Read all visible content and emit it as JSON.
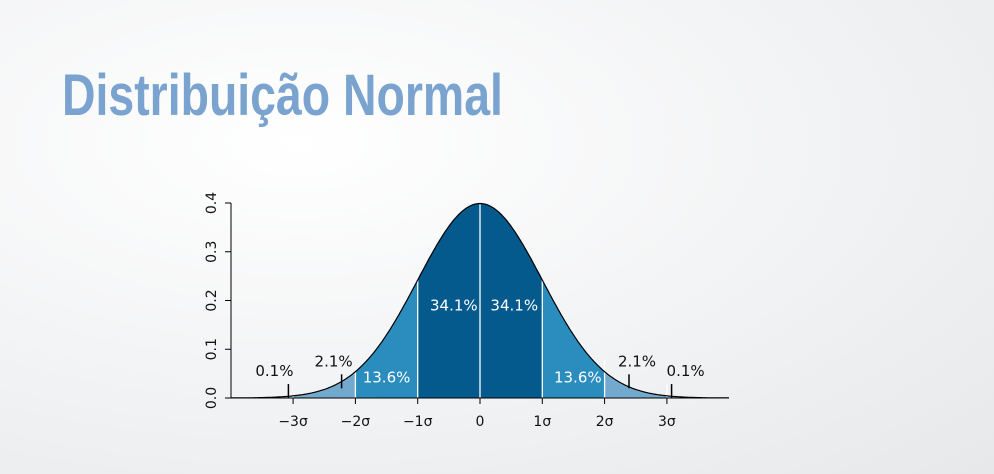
{
  "slide": {
    "title": "Distribuição Normal"
  },
  "colors": {
    "title": "#7ba3cf",
    "band_inner": "#045a8d",
    "band_middle": "#2b8cbe",
    "band_outer": "#74a9cf",
    "band_tail": "#bdd7e7",
    "curve": "#000000",
    "divider": "#ffffff"
  },
  "chart_data": {
    "type": "area",
    "title": "",
    "xlabel": "",
    "ylabel": "",
    "xlim": [
      -3.7,
      3.9
    ],
    "ylim": [
      0,
      0.4
    ],
    "x_ticks": [
      {
        "value": -3,
        "label": "−3σ"
      },
      {
        "value": -2,
        "label": "−2σ"
      },
      {
        "value": -1,
        "label": "−1σ"
      },
      {
        "value": 0,
        "label": "0"
      },
      {
        "value": 1,
        "label": "1σ"
      },
      {
        "value": 2,
        "label": "2σ"
      },
      {
        "value": 3,
        "label": "3σ"
      }
    ],
    "y_ticks": [
      {
        "value": 0.0,
        "label": "0.0"
      },
      {
        "value": 0.1,
        "label": "0.1"
      },
      {
        "value": 0.2,
        "label": "0.2"
      },
      {
        "value": 0.3,
        "label": "0.3"
      },
      {
        "value": 0.4,
        "label": "0.4"
      }
    ],
    "curve": "standard normal density, mean 0, sd 1",
    "bands": [
      {
        "from": -3.9,
        "to": -3,
        "percent": 0.1,
        "label": "0.1%",
        "color": "#bdd7e7",
        "label_x": -3.3,
        "label_y": 0.045,
        "label_outside": true
      },
      {
        "from": -3,
        "to": -2,
        "percent": 2.1,
        "label": "2.1%",
        "color": "#74a9cf",
        "label_x": -2.35,
        "label_y": 0.065,
        "label_outside": true
      },
      {
        "from": -2,
        "to": -1,
        "percent": 13.6,
        "label": "13.6%",
        "color": "#2b8cbe",
        "label_x": -1.5,
        "label_y": 0.032,
        "label_outside": false
      },
      {
        "from": -1,
        "to": 0,
        "percent": 34.1,
        "label": "34.1%",
        "color": "#045a8d",
        "label_x": -0.42,
        "label_y": 0.18,
        "label_outside": false
      },
      {
        "from": 0,
        "to": 1,
        "percent": 34.1,
        "label": "34.1%",
        "color": "#045a8d",
        "label_x": 0.55,
        "label_y": 0.18,
        "label_outside": false
      },
      {
        "from": 1,
        "to": 2,
        "percent": 13.6,
        "label": "13.6%",
        "color": "#2b8cbe",
        "label_x": 1.57,
        "label_y": 0.032,
        "label_outside": false
      },
      {
        "from": 2,
        "to": 3,
        "percent": 2.1,
        "label": "2.1%",
        "color": "#74a9cf",
        "label_x": 2.52,
        "label_y": 0.065,
        "label_outside": true
      },
      {
        "from": 3,
        "to": 3.9,
        "percent": 0.1,
        "label": "0.1%",
        "color": "#bdd7e7",
        "label_x": 3.3,
        "label_y": 0.045,
        "label_outside": true
      }
    ],
    "grid": false,
    "legend": "none"
  }
}
